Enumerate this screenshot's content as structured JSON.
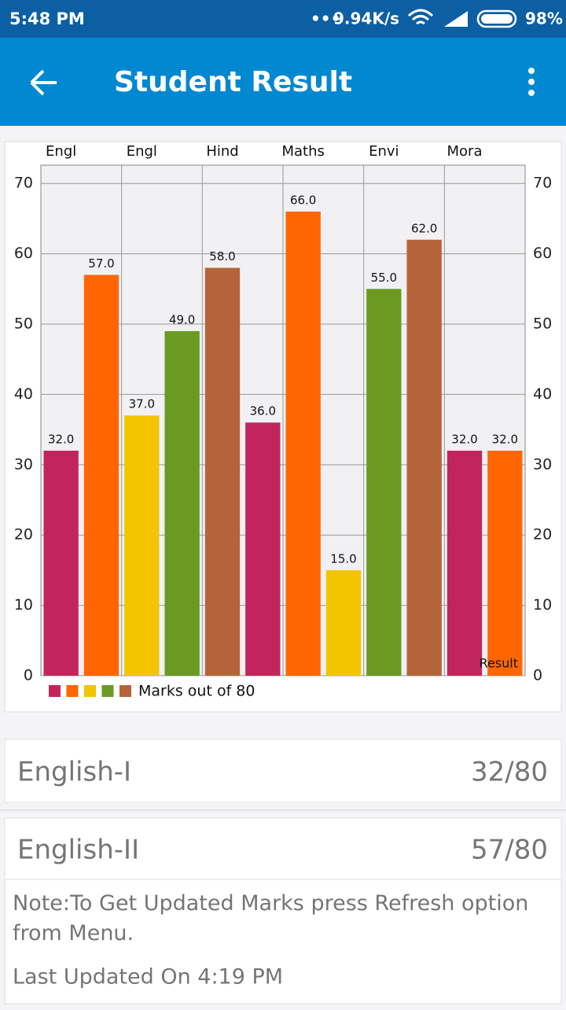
{
  "status_bar": {
    "time": "5:48 PM",
    "speed": "9.94K/s",
    "battery": "98%"
  },
  "app_bar": {
    "title": "Student Result"
  },
  "chart_data": {
    "type": "bar",
    "categories": [
      "Engl",
      null,
      "Engl",
      null,
      "Hind",
      null,
      "Maths",
      null,
      "Envi",
      null,
      "Mora",
      null
    ],
    "values": [
      32,
      57,
      37,
      49,
      58,
      36,
      66,
      15,
      55,
      62,
      32,
      32
    ],
    "value_labels": [
      "32.0",
      "57.0",
      "37.0",
      "49.0",
      "58.0",
      "36.0",
      "66.0",
      "15.0",
      "55.0",
      "62.0",
      "32.0",
      "32.0"
    ],
    "colors": [
      "#c2255c",
      "#ff6600",
      "#f2c500",
      "#6b9a22",
      "#b5643a"
    ],
    "legend_label": "Marks out of 80",
    "annotation": "Result",
    "ylim": [
      0,
      72.6
    ],
    "yticks": [
      0,
      10,
      20,
      30,
      40,
      50,
      60,
      70
    ],
    "y2lim": [
      0,
      72.6
    ],
    "y2ticks": [
      0,
      10,
      20,
      30,
      40,
      50,
      60,
      70
    ],
    "grid": true
  },
  "list": [
    {
      "subject": "English-I",
      "marks": "32/80"
    },
    {
      "subject": "English-II",
      "marks": "57/80"
    }
  ],
  "note": {
    "text": "Note:To Get Updated Marks press Refresh option from Menu.",
    "updated": "Last Updated On 4:19 PM"
  }
}
